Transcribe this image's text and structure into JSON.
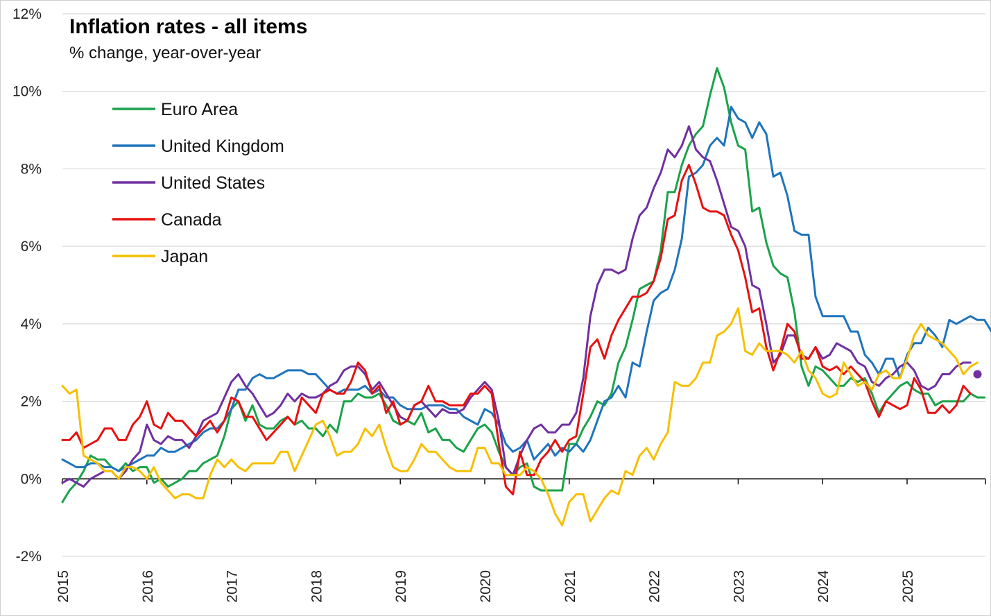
{
  "chart_data": {
    "type": "line",
    "title": "Inflation rates - all items",
    "subtitle": "% change, year-over-year",
    "xlabel": "",
    "ylabel": "",
    "x_start": "2015-01",
    "x_frequency": "monthly",
    "xlim": [
      "2015-01",
      "2025-12"
    ],
    "ylim": [
      -2,
      12
    ],
    "y_ticks": [
      "-2%",
      "0%",
      "2%",
      "4%",
      "6%",
      "8%",
      "10%",
      "12%"
    ],
    "x_ticks": [
      "2015",
      "2016",
      "2017",
      "2018",
      "2019",
      "2020",
      "2021",
      "2022",
      "2023",
      "2024",
      "2025"
    ],
    "grid": "horizontal",
    "legend_position": "top-left",
    "series": [
      {
        "name": "Euro Area",
        "color": "#1aa34a",
        "values": [
          -0.6,
          -0.3,
          -0.1,
          0.2,
          0.6,
          0.5,
          0.5,
          0.3,
          0.2,
          0.4,
          0.2,
          0.3,
          0.3,
          -0.1,
          0.0,
          -0.2,
          -0.1,
          0.0,
          0.2,
          0.2,
          0.4,
          0.5,
          0.6,
          1.1,
          1.8,
          2.0,
          1.5,
          1.9,
          1.4,
          1.3,
          1.3,
          1.5,
          1.6,
          1.4,
          1.5,
          1.3,
          1.3,
          1.1,
          1.4,
          1.2,
          2.0,
          2.0,
          2.2,
          2.1,
          2.1,
          2.2,
          1.9,
          1.5,
          1.4,
          1.5,
          1.4,
          1.7,
          1.2,
          1.3,
          1.0,
          1.0,
          0.8,
          0.7,
          1.0,
          1.3,
          1.4,
          1.2,
          0.7,
          0.3,
          0.1,
          0.3,
          0.4,
          -0.2,
          -0.3,
          -0.3,
          -0.3,
          -0.3,
          0.9,
          0.9,
          1.3,
          1.6,
          2.0,
          1.9,
          2.2,
          3.0,
          3.4,
          4.1,
          4.9,
          5.0,
          5.1,
          5.9,
          7.4,
          7.4,
          8.1,
          8.6,
          8.9,
          9.1,
          9.9,
          10.6,
          10.1,
          9.2,
          8.6,
          8.5,
          6.9,
          7.0,
          6.1,
          5.5,
          5.3,
          5.2,
          4.3,
          2.9,
          2.4,
          2.9,
          2.8,
          2.6,
          2.4,
          2.4,
          2.6,
          2.5,
          2.6,
          2.2,
          1.7,
          2.0,
          2.2,
          2.4,
          2.5,
          2.3,
          2.2,
          2.2,
          1.9,
          2.0,
          2.0,
          2.0,
          2.0,
          2.2,
          2.1,
          2.1
        ]
      },
      {
        "name": "United Kingdom",
        "color": "#1f74bd",
        "values": [
          0.5,
          0.4,
          0.3,
          0.3,
          0.4,
          0.4,
          0.3,
          0.3,
          0.2,
          0.3,
          0.4,
          0.5,
          0.6,
          0.6,
          0.8,
          0.7,
          0.7,
          0.8,
          0.9,
          1.0,
          1.2,
          1.3,
          1.3,
          1.5,
          1.8,
          2.3,
          2.3,
          2.6,
          2.7,
          2.6,
          2.6,
          2.7,
          2.8,
          2.8,
          2.8,
          2.7,
          2.7,
          2.5,
          2.3,
          2.2,
          2.3,
          2.3,
          2.3,
          2.4,
          2.2,
          2.3,
          2.1,
          2.1,
          1.9,
          1.8,
          1.8,
          1.8,
          1.9,
          1.9,
          1.9,
          1.8,
          1.8,
          1.6,
          1.5,
          1.4,
          1.8,
          1.7,
          1.4,
          0.9,
          0.7,
          0.8,
          1.0,
          0.5,
          0.7,
          0.9,
          0.6,
          0.8,
          0.7,
          0.9,
          0.7,
          1.0,
          1.5,
          2.0,
          2.1,
          2.4,
          2.1,
          3.0,
          2.9,
          3.8,
          4.6,
          4.8,
          4.9,
          5.4,
          6.2,
          7.8,
          7.9,
          8.1,
          8.6,
          8.8,
          8.6,
          9.6,
          9.3,
          9.2,
          8.8,
          9.2,
          8.9,
          7.8,
          7.9,
          7.3,
          6.4,
          6.3,
          6.3,
          4.7,
          4.2,
          4.2,
          4.2,
          4.2,
          3.8,
          3.8,
          3.2,
          3.0,
          2.7,
          3.1,
          3.1,
          2.6,
          3.2,
          3.5,
          3.5,
          3.9,
          3.7,
          3.4,
          4.1,
          4.0,
          4.1,
          4.2,
          4.1,
          4.1,
          3.8,
          3.5
        ]
      },
      {
        "name": "United States",
        "color": "#7030a0",
        "values": [
          -0.1,
          0.0,
          -0.1,
          -0.2,
          0.0,
          0.1,
          0.2,
          0.2,
          0.0,
          0.2,
          0.5,
          0.7,
          1.4,
          1.0,
          0.9,
          1.1,
          1.0,
          1.0,
          0.8,
          1.1,
          1.5,
          1.6,
          1.7,
          2.1,
          2.5,
          2.7,
          2.4,
          2.2,
          1.9,
          1.6,
          1.7,
          1.9,
          2.2,
          2.0,
          2.2,
          2.1,
          2.1,
          2.2,
          2.4,
          2.5,
          2.8,
          2.9,
          2.9,
          2.7,
          2.3,
          2.5,
          2.2,
          1.9,
          1.6,
          1.5,
          1.9,
          2.0,
          1.8,
          1.6,
          1.8,
          1.7,
          1.7,
          1.8,
          2.1,
          2.3,
          2.5,
          2.3,
          1.5,
          0.3,
          0.1,
          0.6,
          1.0,
          1.3,
          1.4,
          1.2,
          1.2,
          1.4,
          1.4,
          1.7,
          2.6,
          4.2,
          5.0,
          5.4,
          5.4,
          5.3,
          5.4,
          6.2,
          6.8,
          7.0,
          7.5,
          7.9,
          8.5,
          8.3,
          8.6,
          9.1,
          8.5,
          8.3,
          8.2,
          7.7,
          7.1,
          6.5,
          6.4,
          6.0,
          5.0,
          4.9,
          4.0,
          3.0,
          3.2,
          3.7,
          3.7,
          3.2,
          3.1,
          3.4,
          3.1,
          3.2,
          3.5,
          3.4,
          3.3,
          3.0,
          2.9,
          2.5,
          2.4,
          2.6,
          2.7,
          2.9,
          3.0,
          2.8,
          2.4,
          2.3,
          2.4,
          2.7,
          2.7,
          2.9,
          3.0,
          3.0
        ]
      },
      {
        "name": "Canada",
        "color": "#e81010",
        "values": [
          1.0,
          1.0,
          1.2,
          0.8,
          0.9,
          1.0,
          1.3,
          1.3,
          1.0,
          1.0,
          1.4,
          1.6,
          2.0,
          1.4,
          1.3,
          1.7,
          1.5,
          1.5,
          1.3,
          1.1,
          1.3,
          1.5,
          1.2,
          1.5,
          2.1,
          2.0,
          1.6,
          1.6,
          1.3,
          1.0,
          1.2,
          1.4,
          1.6,
          1.4,
          2.1,
          1.9,
          1.7,
          2.2,
          2.3,
          2.2,
          2.2,
          2.5,
          3.0,
          2.8,
          2.2,
          2.4,
          1.7,
          2.0,
          1.4,
          1.5,
          1.9,
          2.0,
          2.4,
          2.0,
          2.0,
          1.9,
          1.9,
          1.9,
          2.2,
          2.2,
          2.4,
          2.2,
          0.9,
          -0.2,
          -0.4,
          0.7,
          0.1,
          0.1,
          0.5,
          0.7,
          1.0,
          0.7,
          1.0,
          1.1,
          2.2,
          3.4,
          3.6,
          3.1,
          3.7,
          4.1,
          4.4,
          4.7,
          4.7,
          4.8,
          5.1,
          5.7,
          6.7,
          6.8,
          7.7,
          8.1,
          7.6,
          7.0,
          6.9,
          6.9,
          6.8,
          6.3,
          5.9,
          5.2,
          4.3,
          4.4,
          3.4,
          2.8,
          3.3,
          4.0,
          3.8,
          3.1,
          3.1,
          3.4,
          2.9,
          2.8,
          2.9,
          2.7,
          2.9,
          2.7,
          2.5,
          2.0,
          1.6,
          2.0,
          1.9,
          1.8,
          1.9,
          2.6,
          2.3,
          1.7,
          1.7,
          1.9,
          1.7,
          1.9,
          2.4,
          2.2
        ]
      },
      {
        "name": "Japan",
        "color": "#f6c000",
        "values": [
          2.4,
          2.2,
          2.3,
          0.6,
          0.5,
          0.4,
          0.2,
          0.2,
          0.0,
          0.3,
          0.3,
          0.2,
          0.0,
          0.3,
          -0.1,
          -0.3,
          -0.5,
          -0.4,
          -0.4,
          -0.5,
          -0.5,
          0.1,
          0.5,
          0.3,
          0.5,
          0.3,
          0.2,
          0.4,
          0.4,
          0.4,
          0.4,
          0.7,
          0.7,
          0.2,
          0.6,
          1.0,
          1.4,
          1.5,
          1.1,
          0.6,
          0.7,
          0.7,
          0.9,
          1.3,
          1.1,
          1.4,
          0.8,
          0.3,
          0.2,
          0.2,
          0.5,
          0.9,
          0.7,
          0.7,
          0.5,
          0.3,
          0.2,
          0.2,
          0.2,
          0.8,
          0.8,
          0.4,
          0.4,
          0.1,
          0.1,
          0.1,
          0.3,
          0.2,
          0.0,
          -0.4,
          -0.9,
          -1.2,
          -0.6,
          -0.4,
          -0.4,
          -1.1,
          -0.8,
          -0.5,
          -0.3,
          -0.4,
          0.2,
          0.1,
          0.6,
          0.8,
          0.5,
          0.9,
          1.2,
          2.5,
          2.4,
          2.4,
          2.6,
          3.0,
          3.0,
          3.7,
          3.8,
          4.0,
          4.4,
          3.3,
          3.2,
          3.5,
          3.3,
          3.3,
          3.3,
          3.2,
          3.0,
          3.3,
          2.8,
          2.6,
          2.2,
          2.1,
          2.2,
          3.0,
          2.7,
          2.4,
          2.5,
          2.3,
          2.7,
          2.8,
          2.6,
          2.6,
          3.1,
          3.7,
          4.0,
          3.7,
          3.6,
          3.5,
          3.3,
          3.1,
          2.7,
          2.9,
          3.0
        ]
      }
    ],
    "marker": {
      "series": "United States",
      "x": "2025-11",
      "value": 2.7,
      "color": "#7030a0"
    }
  }
}
